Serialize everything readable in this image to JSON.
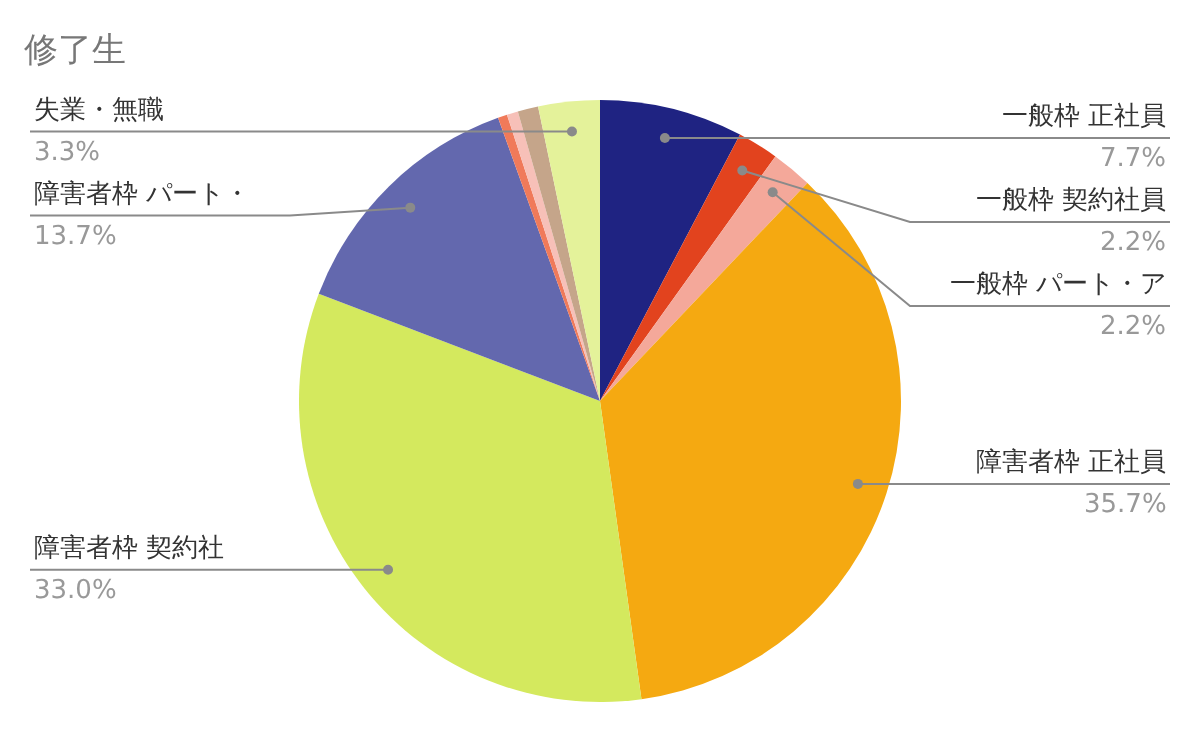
{
  "chart_data": {
    "type": "pie",
    "title": "修了生",
    "categories": [
      "一般枠 正社員",
      "一般枠 契約社員",
      "一般枠 パート・ア",
      "障害者枠 正社員",
      "障害者枠 契約社",
      "障害者枠 パート・",
      null,
      null,
      null,
      "失業・無職"
    ],
    "values": [
      7.7,
      2.2,
      2.2,
      35.7,
      33.0,
      13.7,
      0.5,
      0.6,
      1.1,
      3.3
    ],
    "colors": [
      "#1f2382",
      "#e2431e",
      "#f4a89a",
      "#f5a911",
      "#d4e95e",
      "#6368ae",
      "#f07a5a",
      "#f7c0b8",
      "#c5a58a",
      "#e4f29a"
    ],
    "value_labels": [
      "7.7%",
      "2.2%",
      "2.2%",
      "35.7%",
      "33.0%",
      "13.7%",
      null,
      null,
      null,
      "3.3%"
    ]
  }
}
